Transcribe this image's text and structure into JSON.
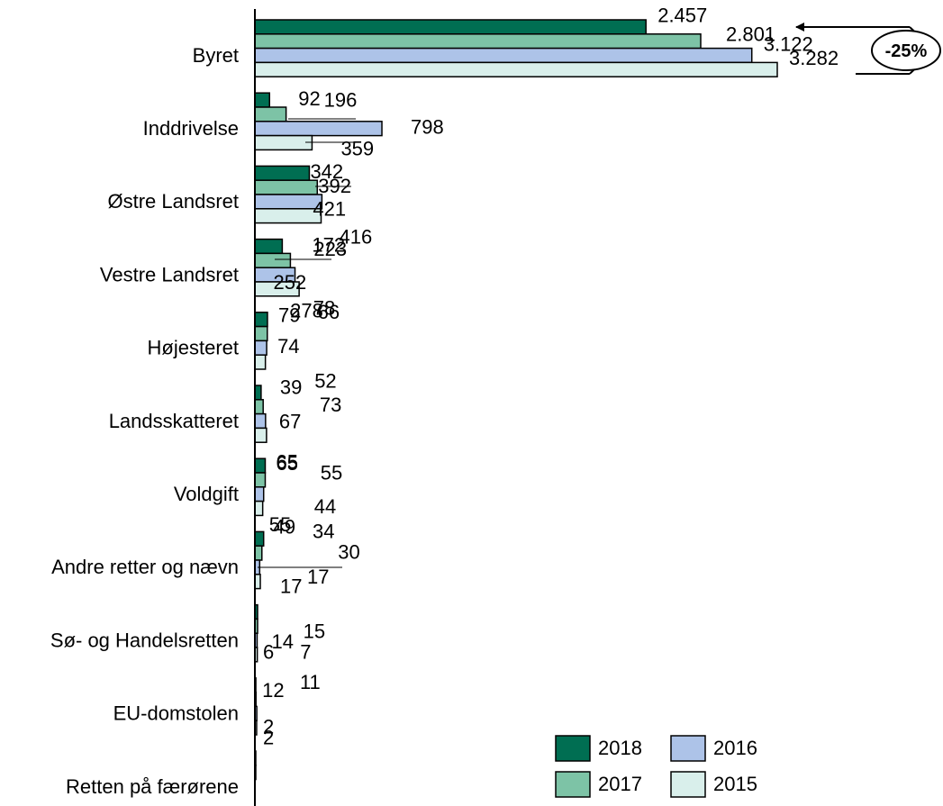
{
  "chart_data": {
    "type": "bar",
    "orientation": "horizontal",
    "categories": [
      "Byret",
      "Inddrivelse",
      "Østre Landsret",
      "Vestre Landsret",
      "Højesteret",
      "Landsskatteret",
      "Voldgift",
      "Andre retter og nævn",
      "Sø- og Handelsretten",
      "EU-domstolen",
      "Retten på færørene"
    ],
    "series": [
      {
        "name": "2018",
        "color": "#006e52",
        "values": [
          2457,
          92,
          342,
          172,
          79,
          39,
          65,
          55,
          17,
          6,
          2
        ],
        "labels": [
          "2.457",
          "92",
          "342",
          "172",
          "79",
          "39",
          "65",
          "55",
          "17",
          "6",
          "2"
        ]
      },
      {
        "name": "2017",
        "color": "#7dc3a6",
        "values": [
          2801,
          196,
          392,
          223,
          78,
          52,
          65,
          44,
          17,
          7,
          2
        ],
        "labels": [
          "2.801",
          "196",
          "392",
          "223",
          "78",
          "52",
          "65",
          "44",
          "17",
          "7",
          "2"
        ]
      },
      {
        "name": "2016",
        "color": "#adc3e8",
        "values": [
          3122,
          798,
          421,
          252,
          74,
          67,
          55,
          30,
          14,
          12,
          null
        ],
        "labels": [
          "3.122",
          "798",
          "421",
          "252",
          "74",
          "67",
          "55",
          "30",
          "14",
          "12",
          ""
        ]
      },
      {
        "name": "2015",
        "color": "#d9efeb",
        "values": [
          3282,
          359,
          416,
          278,
          66,
          73,
          49,
          34,
          15,
          11,
          null
        ],
        "labels": [
          "3.282",
          "359",
          "416",
          "278",
          "66",
          "73",
          "49",
          "34",
          "15",
          "11",
          ""
        ]
      }
    ],
    "legend": {
      "placement": "bottom-right",
      "entries": [
        "2018",
        "2016",
        "2017",
        "2015"
      ]
    },
    "annotation": {
      "text": "-25%",
      "from_category": "Byret",
      "from_series": "2015",
      "to_series": "2018"
    },
    "xlabel": "",
    "ylabel": "",
    "grid": false
  }
}
